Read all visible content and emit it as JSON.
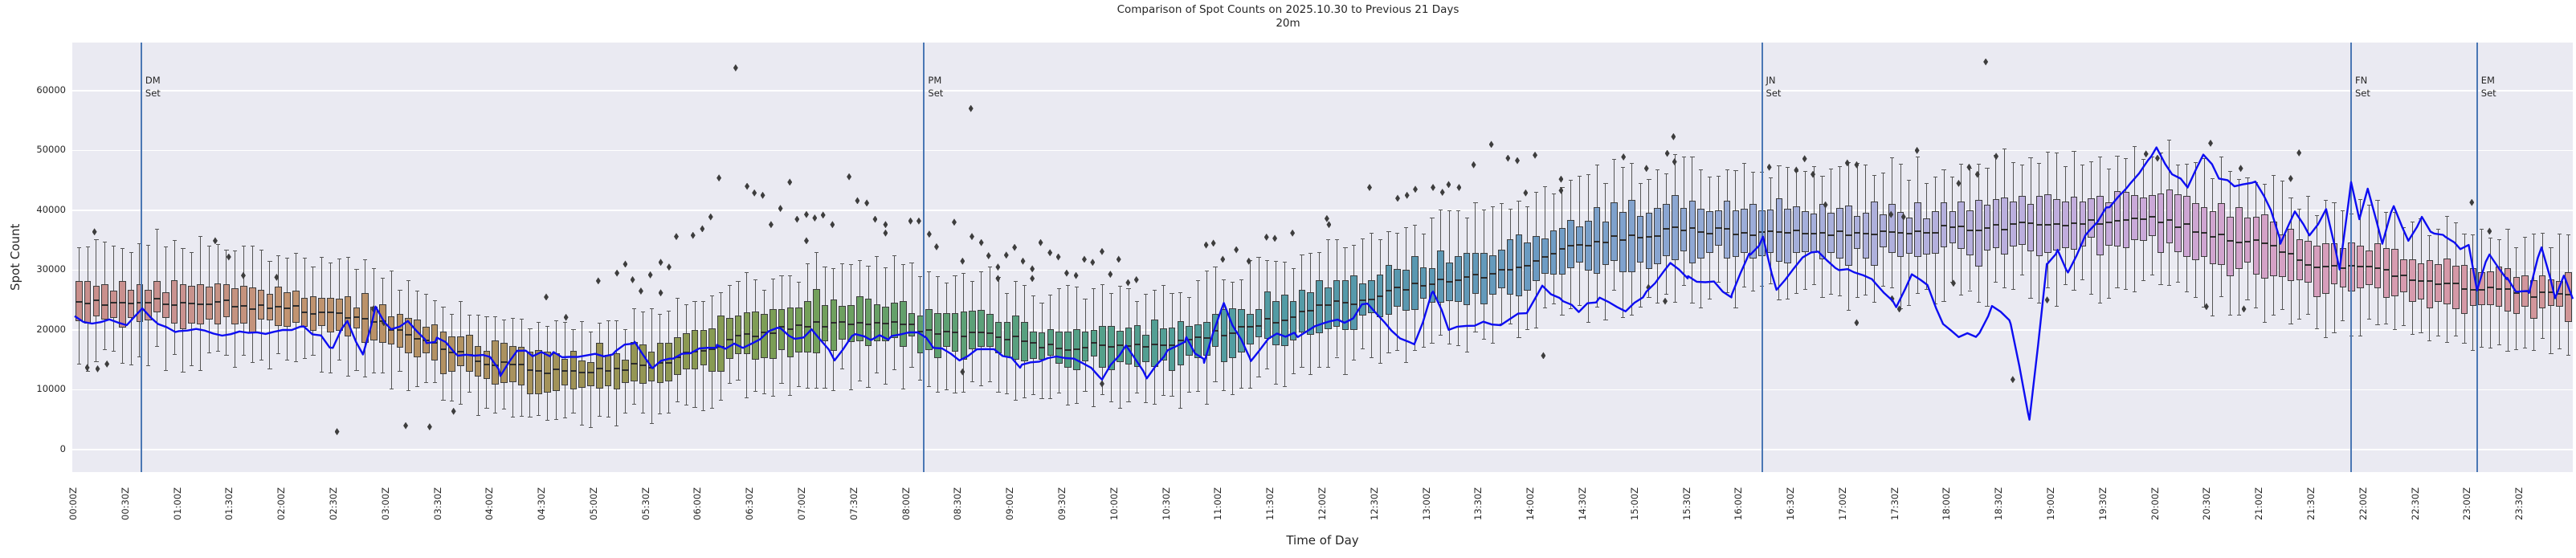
{
  "figure": {
    "title": "Comparison of Spot Counts on 2025.10.30 to Previous 21 Days",
    "subtitle": "20m",
    "xlabel": "Time of Day",
    "ylabel": "Spot Count"
  },
  "colors": {
    "figure_background": "#ffffff",
    "plot_background": "#eaeaf2",
    "grid": "#ffffff",
    "today_line": "#0d0df2",
    "sunset_line": "#4a77b4",
    "box_edge": "#3c3c3c",
    "whisker": "#555555",
    "median": "#2e2e2e",
    "outlier": "#3d3d3d",
    "text": "#262626"
  },
  "chart_data": {
    "type": "boxplot+line",
    "title": "Comparison of Spot Counts on 2025.10.30 to Previous 21 Days",
    "subtitle": "20m",
    "xlabel": "Time of Day",
    "ylabel": "Spot Count",
    "grid": "horizontal-only",
    "legend": "none",
    "bin_minutes": 5,
    "x_range_hours": [
      0,
      24
    ],
    "ylim": [
      -3700,
      68000
    ],
    "yticks": [
      0,
      10000,
      20000,
      30000,
      40000,
      50000,
      60000
    ],
    "xtick_step_minutes": 30,
    "xtick_labels": [
      "00:00Z",
      "00:30Z",
      "01:00Z",
      "01:30Z",
      "02:00Z",
      "02:30Z",
      "03:00Z",
      "03:30Z",
      "04:00Z",
      "04:30Z",
      "05:00Z",
      "05:30Z",
      "06:00Z",
      "06:30Z",
      "07:00Z",
      "07:30Z",
      "08:00Z",
      "08:30Z",
      "09:00Z",
      "09:30Z",
      "10:00Z",
      "10:30Z",
      "11:00Z",
      "11:30Z",
      "12:00Z",
      "12:30Z",
      "13:00Z",
      "13:30Z",
      "14:00Z",
      "14:30Z",
      "15:00Z",
      "15:30Z",
      "16:00Z",
      "16:30Z",
      "17:00Z",
      "17:30Z",
      "18:00Z",
      "18:30Z",
      "19:00Z",
      "19:30Z",
      "20:00Z",
      "20:30Z",
      "21:00Z",
      "21:30Z",
      "22:00Z",
      "22:30Z",
      "23:00Z",
      "23:30Z"
    ],
    "anchor_step_hours": 0.5,
    "box_median_anchors": [
      24500,
      25000,
      24600,
      24300,
      23800,
      22500,
      20800,
      17500,
      14500,
      13000,
      13400,
      13900,
      16300,
      19400,
      20500,
      21400,
      20700,
      19200,
      18600,
      17000,
      17600,
      17700,
      19500,
      21500,
      23900,
      25500,
      27900,
      29000,
      31300,
      34500,
      35500,
      37000,
      36200,
      36600,
      36100,
      36000,
      37000,
      37100,
      37700,
      37800,
      38400,
      36300,
      34400,
      31000,
      30600,
      28500,
      26800,
      26200,
      25400
    ],
    "box_iqr_half_anchors": [
      2800,
      2800,
      2800,
      2800,
      2700,
      2700,
      2600,
      2600,
      2500,
      2500,
      2600,
      2800,
      3200,
      3500,
      3500,
      3200,
      3000,
      2800,
      2800,
      2600,
      2600,
      2700,
      2800,
      3000,
      3200,
      3300,
      3300,
      3400,
      3500,
      3800,
      4000,
      4000,
      3800,
      3600,
      3500,
      3500,
      3600,
      3800,
      3800,
      3900,
      4200,
      4200,
      3800,
      3400,
      3200,
      3300,
      3000,
      2900,
      2900
    ],
    "box_whisker_half_anchors": [
      9500,
      9200,
      9000,
      8800,
      8500,
      8200,
      8000,
      7500,
      7000,
      7200,
      7500,
      8000,
      8500,
      8800,
      9000,
      9000,
      9000,
      8800,
      8500,
      8500,
      8500,
      8800,
      9000,
      9200,
      9500,
      9500,
      9500,
      9800,
      10000,
      10200,
      10500,
      10300,
      10000,
      10000,
      10000,
      10200,
      10500,
      10500,
      10500,
      10800,
      11000,
      10800,
      10500,
      10000,
      9500,
      9200,
      9000,
      8800,
      8500
    ],
    "today_line_points": [
      [
        0,
        22300
      ],
      [
        0.25,
        21300
      ],
      [
        0.5,
        20800
      ],
      [
        0.65,
        23600
      ],
      [
        0.8,
        21000
      ],
      [
        1.0,
        19800
      ],
      [
        1.25,
        19900
      ],
      [
        1.5,
        19300
      ],
      [
        1.75,
        19600
      ],
      [
        2.0,
        20000
      ],
      [
        2.2,
        20600
      ],
      [
        2.48,
        17000
      ],
      [
        2.62,
        21500
      ],
      [
        2.77,
        15900
      ],
      [
        2.89,
        23900
      ],
      [
        3.04,
        20100
      ],
      [
        3.2,
        21500
      ],
      [
        3.38,
        17800
      ],
      [
        3.48,
        18700
      ],
      [
        3.68,
        15700
      ],
      [
        3.84,
        15700
      ],
      [
        3.99,
        15500
      ],
      [
        4.09,
        12300
      ],
      [
        4.25,
        16500
      ],
      [
        4.4,
        15600
      ],
      [
        4.6,
        16300
      ],
      [
        4.75,
        15500
      ],
      [
        5.0,
        16000
      ],
      [
        5.2,
        16500
      ],
      [
        5.38,
        18000
      ],
      [
        5.55,
        13600
      ],
      [
        5.75,
        15200
      ],
      [
        6.0,
        16900
      ],
      [
        6.17,
        17500
      ],
      [
        6.42,
        17000
      ],
      [
        6.67,
        19800
      ],
      [
        6.78,
        20300
      ],
      [
        6.92,
        18500
      ],
      [
        7.08,
        20100
      ],
      [
        7.3,
        14900
      ],
      [
        7.5,
        19300
      ],
      [
        7.65,
        18300
      ],
      [
        7.85,
        19000
      ],
      [
        8.1,
        19600
      ],
      [
        8.25,
        17000
      ],
      [
        8.5,
        14900
      ],
      [
        8.75,
        16800
      ],
      [
        9.1,
        14200
      ],
      [
        9.35,
        15300
      ],
      [
        9.6,
        15200
      ],
      [
        9.87,
        11700
      ],
      [
        10.1,
        17400
      ],
      [
        10.3,
        11900
      ],
      [
        10.5,
        16600
      ],
      [
        10.68,
        18800
      ],
      [
        10.85,
        14500
      ],
      [
        11.04,
        24500
      ],
      [
        11.3,
        14800
      ],
      [
        11.55,
        19400
      ],
      [
        11.75,
        18800
      ],
      [
        12.05,
        21400
      ],
      [
        12.2,
        21200
      ],
      [
        12.42,
        24400
      ],
      [
        12.65,
        19900
      ],
      [
        12.87,
        17600
      ],
      [
        13.05,
        26400
      ],
      [
        13.2,
        20000
      ],
      [
        13.45,
        20700
      ],
      [
        13.7,
        20800
      ],
      [
        13.95,
        22800
      ],
      [
        14.1,
        27400
      ],
      [
        14.3,
        24800
      ],
      [
        14.45,
        23000
      ],
      [
        14.65,
        25400
      ],
      [
        14.9,
        23100
      ],
      [
        15.1,
        26400
      ],
      [
        15.33,
        31200
      ],
      [
        15.5,
        29000
      ],
      [
        15.75,
        28100
      ],
      [
        15.92,
        25900
      ],
      [
        16.1,
        32600
      ],
      [
        16.22,
        35600
      ],
      [
        16.35,
        26700
      ],
      [
        16.6,
        32100
      ],
      [
        16.75,
        33100
      ],
      [
        16.95,
        30000
      ],
      [
        17.1,
        29600
      ],
      [
        17.3,
        27800
      ],
      [
        17.5,
        23800
      ],
      [
        17.65,
        29300
      ],
      [
        17.8,
        27500
      ],
      [
        17.95,
        21000
      ],
      [
        18.1,
        18800
      ],
      [
        18.3,
        19500
      ],
      [
        18.42,
        24000
      ],
      [
        18.6,
        21000
      ],
      [
        18.78,
        5000
      ],
      [
        18.95,
        31000
      ],
      [
        19.05,
        33400
      ],
      [
        19.15,
        29600
      ],
      [
        19.35,
        36500
      ],
      [
        19.55,
        40500
      ],
      [
        19.75,
        44500
      ],
      [
        19.95,
        49000
      ],
      [
        20.0,
        50500
      ],
      [
        20.15,
        46000
      ],
      [
        20.3,
        43800
      ],
      [
        20.45,
        49300
      ],
      [
        20.6,
        45300
      ],
      [
        20.75,
        44000
      ],
      [
        20.95,
        44800
      ],
      [
        21.1,
        40000
      ],
      [
        21.19,
        34400
      ],
      [
        21.33,
        39800
      ],
      [
        21.47,
        35800
      ],
      [
        21.63,
        40200
      ],
      [
        21.76,
        30100
      ],
      [
        21.87,
        44700
      ],
      [
        21.95,
        38500
      ],
      [
        22.03,
        43600
      ],
      [
        22.17,
        34400
      ],
      [
        22.28,
        40700
      ],
      [
        22.42,
        34900
      ],
      [
        22.55,
        38900
      ],
      [
        22.67,
        36100
      ],
      [
        22.78,
        35500
      ],
      [
        22.92,
        33500
      ],
      [
        23.0,
        34200
      ],
      [
        23.08,
        26600
      ],
      [
        23.2,
        32600
      ],
      [
        23.37,
        28700
      ],
      [
        23.48,
        26400
      ],
      [
        23.58,
        26200
      ],
      [
        23.7,
        33800
      ],
      [
        23.83,
        25300
      ],
      [
        23.92,
        28900
      ],
      [
        24.0,
        25200
      ]
    ],
    "outliers": [
      [
        0.12,
        13700
      ],
      [
        0.22,
        13500
      ],
      [
        0.31,
        14300
      ],
      [
        0.19,
        36400
      ],
      [
        1.35,
        34900
      ],
      [
        1.48,
        32200
      ],
      [
        1.62,
        29100
      ],
      [
        1.94,
        28800
      ],
      [
        2.52,
        3000
      ],
      [
        2.87,
        23500
      ],
      [
        2.97,
        21200
      ],
      [
        3.18,
        4000
      ],
      [
        3.41,
        3800
      ],
      [
        3.64,
        6400
      ],
      [
        4.53,
        25500
      ],
      [
        4.72,
        22100
      ],
      [
        5.03,
        28200
      ],
      [
        5.21,
        29500
      ],
      [
        5.29,
        31000
      ],
      [
        5.36,
        28400
      ],
      [
        5.44,
        26500
      ],
      [
        5.53,
        29200
      ],
      [
        5.63,
        31300
      ],
      [
        5.63,
        26200
      ],
      [
        5.71,
        30500
      ],
      [
        5.78,
        35600
      ],
      [
        5.94,
        35800
      ],
      [
        6.03,
        36900
      ],
      [
        6.11,
        38900
      ],
      [
        6.19,
        45400
      ],
      [
        6.35,
        63800
      ],
      [
        6.46,
        44000
      ],
      [
        6.53,
        42900
      ],
      [
        6.61,
        42500
      ],
      [
        6.69,
        37600
      ],
      [
        6.78,
        40300
      ],
      [
        6.87,
        44700
      ],
      [
        6.94,
        38500
      ],
      [
        7.03,
        39300
      ],
      [
        7.03,
        34900
      ],
      [
        7.11,
        38700
      ],
      [
        7.19,
        39200
      ],
      [
        7.28,
        37600
      ],
      [
        7.44,
        45600
      ],
      [
        7.52,
        41600
      ],
      [
        7.61,
        41200
      ],
      [
        7.69,
        38500
      ],
      [
        7.79,
        37600
      ],
      [
        7.79,
        36200
      ],
      [
        8.03,
        38200
      ],
      [
        8.11,
        38200
      ],
      [
        8.21,
        36000
      ],
      [
        8.28,
        33900
      ],
      [
        8.45,
        38000
      ],
      [
        8.53,
        31500
      ],
      [
        8.53,
        13000
      ],
      [
        8.61,
        57000
      ],
      [
        8.62,
        35600
      ],
      [
        8.71,
        34600
      ],
      [
        8.78,
        32400
      ],
      [
        8.87,
        30500
      ],
      [
        8.87,
        28600
      ],
      [
        8.95,
        32500
      ],
      [
        9.03,
        33800
      ],
      [
        9.11,
        31500
      ],
      [
        9.2,
        30200
      ],
      [
        9.2,
        28600
      ],
      [
        9.28,
        34600
      ],
      [
        9.37,
        32900
      ],
      [
        9.45,
        32200
      ],
      [
        9.53,
        29500
      ],
      [
        9.62,
        29100
      ],
      [
        9.7,
        31800
      ],
      [
        9.78,
        31300
      ],
      [
        9.87,
        33100
      ],
      [
        9.87,
        11000
      ],
      [
        9.95,
        29300
      ],
      [
        10.03,
        31800
      ],
      [
        10.12,
        27900
      ],
      [
        10.2,
        28400
      ],
      [
        10.87,
        34200
      ],
      [
        10.94,
        34500
      ],
      [
        11.03,
        31800
      ],
      [
        11.16,
        33400
      ],
      [
        11.28,
        31500
      ],
      [
        11.45,
        35500
      ],
      [
        11.53,
        35300
      ],
      [
        11.7,
        36200
      ],
      [
        12.03,
        38600
      ],
      [
        12.05,
        37600
      ],
      [
        12.44,
        43800
      ],
      [
        12.71,
        42000
      ],
      [
        12.8,
        42500
      ],
      [
        12.88,
        43500
      ],
      [
        13.05,
        43800
      ],
      [
        13.14,
        43000
      ],
      [
        13.2,
        44300
      ],
      [
        13.3,
        43800
      ],
      [
        13.44,
        47600
      ],
      [
        13.61,
        51000
      ],
      [
        13.77,
        48700
      ],
      [
        13.86,
        48300
      ],
      [
        13.94,
        42900
      ],
      [
        14.03,
        49200
      ],
      [
        14.11,
        15700
      ],
      [
        14.28,
        45200
      ],
      [
        14.28,
        43300
      ],
      [
        14.88,
        48900
      ],
      [
        15.1,
        47000
      ],
      [
        15.12,
        27100
      ],
      [
        15.28,
        24800
      ],
      [
        15.3,
        49500
      ],
      [
        15.37,
        48100
      ],
      [
        15.36,
        52300
      ],
      [
        16.28,
        47200
      ],
      [
        16.54,
        46700
      ],
      [
        16.62,
        48600
      ],
      [
        16.7,
        46000
      ],
      [
        16.82,
        40900
      ],
      [
        17.03,
        47900
      ],
      [
        17.12,
        47600
      ],
      [
        17.12,
        21200
      ],
      [
        17.45,
        39300
      ],
      [
        17.46,
        25200
      ],
      [
        17.53,
        23500
      ],
      [
        17.57,
        38900
      ],
      [
        17.7,
        50000
      ],
      [
        18.05,
        27800
      ],
      [
        18.1,
        44500
      ],
      [
        18.2,
        47200
      ],
      [
        18.28,
        46000
      ],
      [
        18.36,
        64800
      ],
      [
        18.46,
        49000
      ],
      [
        18.62,
        11700
      ],
      [
        18.95,
        25000
      ],
      [
        19.9,
        49400
      ],
      [
        20.01,
        48700
      ],
      [
        20.48,
        23900
      ],
      [
        20.52,
        51200
      ],
      [
        20.81,
        47000
      ],
      [
        20.84,
        23500
      ],
      [
        21.29,
        45300
      ],
      [
        21.37,
        49600
      ],
      [
        23.03,
        41300
      ],
      [
        23.2,
        36500
      ]
    ],
    "palette_anchors": [
      {
        "hour": 0,
        "color": "#c98f8c"
      },
      {
        "hour": 1,
        "color": "#c99290"
      },
      {
        "hour": 2,
        "color": "#c29472"
      },
      {
        "hour": 3,
        "color": "#b99267"
      },
      {
        "hour": 4,
        "color": "#ad9260"
      },
      {
        "hour": 5,
        "color": "#9c9355"
      },
      {
        "hour": 6,
        "color": "#8a9a52"
      },
      {
        "hour": 7,
        "color": "#75a058"
      },
      {
        "hour": 8,
        "color": "#62a06c"
      },
      {
        "hour": 9,
        "color": "#58a07e"
      },
      {
        "hour": 10,
        "color": "#53a08c"
      },
      {
        "hour": 11,
        "color": "#529da0"
      },
      {
        "hour": 12,
        "color": "#549aa8"
      },
      {
        "hour": 13,
        "color": "#5b98b2"
      },
      {
        "hour": 14,
        "color": "#6b9bc2"
      },
      {
        "hour": 15,
        "color": "#83a3cf"
      },
      {
        "hour": 16,
        "color": "#9badd8"
      },
      {
        "hour": 17,
        "color": "#abb0dc"
      },
      {
        "hour": 18,
        "color": "#b5b0dd"
      },
      {
        "hour": 19,
        "color": "#bfaede"
      },
      {
        "hour": 20,
        "color": "#cba8d8"
      },
      {
        "hour": 21,
        "color": "#d4a2c8"
      },
      {
        "hour": 22,
        "color": "#d89db4"
      },
      {
        "hour": 23,
        "color": "#d598a5"
      },
      {
        "hour": 24,
        "color": "#d09595"
      }
    ],
    "sunset_markers": [
      {
        "label": "DM Set",
        "lines": [
          "DM",
          "Set"
        ],
        "hour": 0.64,
        "time": "00:38Z"
      },
      {
        "label": "PM Set",
        "lines": [
          "PM",
          "Set"
        ],
        "hour": 8.16,
        "time": "08:10Z"
      },
      {
        "label": "JN Set",
        "lines": [
          "JN",
          "Set"
        ],
        "hour": 16.21,
        "time": "16:13Z"
      },
      {
        "label": "FN Set",
        "lines": [
          "FN",
          "Set"
        ],
        "hour": 21.87,
        "time": "21:52Z"
      },
      {
        "label": "EM Set",
        "lines": [
          "EM",
          "Set"
        ],
        "hour": 23.08,
        "time": "23:05Z"
      }
    ]
  }
}
